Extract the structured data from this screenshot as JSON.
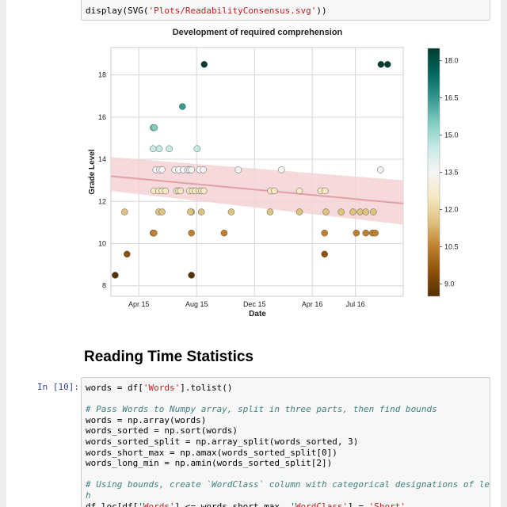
{
  "top_cell": {
    "code_parts": [
      "display(SVG(",
      "'Plots/ReadabilityConsensus.svg'",
      "))"
    ]
  },
  "section": {
    "heading": "Reading Time Statistics"
  },
  "cell10": {
    "prompt": "In [10]:",
    "lines": [
      {
        "type": "mixed",
        "parts": [
          "words = df[",
          "'Words'",
          "].tolist()"
        ]
      },
      {
        "type": "blank",
        "text": ""
      },
      {
        "type": "comment",
        "text": "# Pass Words to Numpy array, split in three parts, then find bounds"
      },
      {
        "type": "code",
        "text": "words = np.array(words)"
      },
      {
        "type": "code",
        "text": "words_sorted = np.sort(words)"
      },
      {
        "type": "code",
        "text": "words_sorted_split = np.array_split(words_sorted, 3)"
      },
      {
        "type": "code",
        "text": "words_short_max = np.amax(words_sorted_split[0])"
      },
      {
        "type": "code",
        "text": "words_long_min = np.amin(words_sorted_split[2])"
      },
      {
        "type": "blank",
        "text": ""
      },
      {
        "type": "comment",
        "text": "# Using bounds, create `WordClass` column with categorical designations of length"
      },
      {
        "type": "comment",
        "text": "h"
      },
      {
        "type": "mixed",
        "parts": [
          "df.loc[df[",
          "'Words'",
          "] <= words_short_max, ",
          "'WordClass'",
          "] = ",
          "'Short'"
        ]
      }
    ]
  },
  "chart_data": {
    "type": "scatter",
    "title": "Development of required comprehension",
    "xlabel": "Date",
    "ylabel": "Grade Level",
    "x_ticks": [
      "Apr 15",
      "Aug 15",
      "Dec 15",
      "Apr 16",
      "Jul 16"
    ],
    "xlim": [
      "2015-02-01",
      "2016-10-10"
    ],
    "y_ticks": [
      8,
      10,
      12,
      14,
      16,
      18
    ],
    "ylim": [
      7.5,
      19.3
    ],
    "grid": true,
    "colorbar": {
      "ticks": [
        9.0,
        10.5,
        12.0,
        13.5,
        15.0,
        16.5,
        18.0
      ],
      "range": [
        8.5,
        18.5
      ],
      "colormap": "BrBG"
    },
    "trend": {
      "start": [
        "2015-02-01",
        13.2
      ],
      "end": [
        "2016-10-10",
        11.9
      ],
      "band_start": [
        12.5,
        14.1
      ],
      "band_end": [
        10.9,
        13.0
      ],
      "color": "#e0a0a4",
      "band_color": "#f5d2d3"
    },
    "points": [
      [
        "2015-02-10",
        8.5
      ],
      [
        "2015-03-07",
        9.5
      ],
      [
        "2015-03-02",
        11.5
      ],
      [
        "2015-05-01",
        10.5
      ],
      [
        "2015-05-03",
        10.5
      ],
      [
        "2015-05-03",
        12.5
      ],
      [
        "2015-05-13",
        12.5
      ],
      [
        "2015-05-20",
        12.5
      ],
      [
        "2015-05-27",
        12.5
      ],
      [
        "2015-05-13",
        11.5
      ],
      [
        "2015-05-20",
        11.5
      ],
      [
        "2015-05-07",
        13.5
      ],
      [
        "2015-05-15",
        13.5
      ],
      [
        "2015-05-20",
        13.5
      ],
      [
        "2015-05-01",
        14.5
      ],
      [
        "2015-05-14",
        14.5
      ],
      [
        "2015-06-04",
        14.5
      ],
      [
        "2015-05-01",
        15.5
      ],
      [
        "2015-05-04",
        15.5
      ],
      [
        "2015-06-20",
        12.5
      ],
      [
        "2015-06-24",
        12.5
      ],
      [
        "2015-06-28",
        12.5
      ],
      [
        "2015-06-16",
        13.5
      ],
      [
        "2015-06-24",
        13.5
      ],
      [
        "2015-07-04",
        13.5
      ],
      [
        "2015-07-02",
        16.5
      ],
      [
        "2015-07-21",
        11.5
      ],
      [
        "2015-07-21",
        10.5
      ],
      [
        "2015-07-21",
        8.5
      ],
      [
        "2015-07-17",
        12.5
      ],
      [
        "2015-07-23",
        12.5
      ],
      [
        "2015-07-29",
        12.5
      ],
      [
        "2015-08-06",
        12.5
      ],
      [
        "2015-08-11",
        12.5
      ],
      [
        "2015-08-16",
        12.5
      ],
      [
        "2015-07-19",
        11.5
      ],
      [
        "2015-08-11",
        11.5
      ],
      [
        "2015-07-13",
        13.5
      ],
      [
        "2015-07-17",
        13.5
      ],
      [
        "2015-07-21",
        13.5
      ],
      [
        "2015-08-07",
        13.5
      ],
      [
        "2015-08-15",
        13.5
      ],
      [
        "2015-08-02",
        14.5
      ],
      [
        "2015-08-17",
        18.5
      ],
      [
        "2015-09-28",
        10.5
      ],
      [
        "2015-10-13",
        11.5
      ],
      [
        "2015-10-28",
        13.5
      ],
      [
        "2016-01-04",
        12.5
      ],
      [
        "2016-01-12",
        12.5
      ],
      [
        "2016-01-03",
        11.5
      ],
      [
        "2016-01-27",
        13.5
      ],
      [
        "2016-03-05",
        12.5
      ],
      [
        "2016-03-05",
        11.5
      ],
      [
        "2016-04-19",
        12.5
      ],
      [
        "2016-04-28",
        12.5
      ],
      [
        "2016-04-27",
        10.5
      ],
      [
        "2016-04-27",
        9.5
      ],
      [
        "2016-04-30",
        11.5
      ],
      [
        "2016-06-01",
        11.5
      ],
      [
        "2016-06-26",
        11.5
      ],
      [
        "2016-07-11",
        11.5
      ],
      [
        "2016-07-23",
        11.5
      ],
      [
        "2016-08-08",
        11.5
      ],
      [
        "2016-07-23",
        10.5
      ],
      [
        "2016-08-06",
        10.5
      ],
      [
        "2016-08-12",
        10.5
      ],
      [
        "2016-07-03",
        10.5
      ],
      [
        "2016-08-23",
        13.5
      ],
      [
        "2016-08-24",
        18.5
      ],
      [
        "2016-09-07",
        18.5
      ]
    ]
  }
}
